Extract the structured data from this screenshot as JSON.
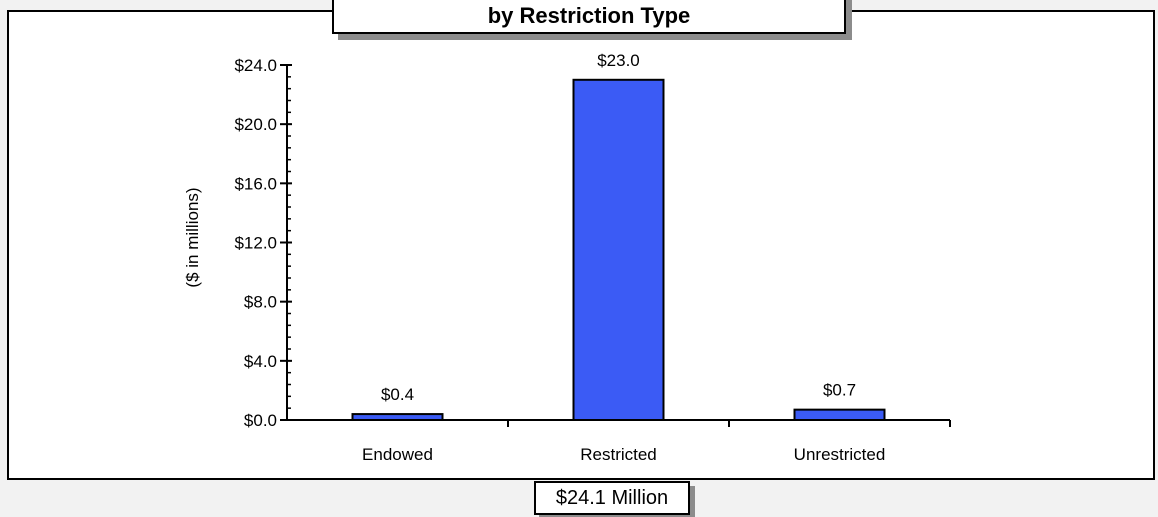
{
  "chart_data": {
    "type": "bar",
    "title": "by Restriction Type",
    "categories": [
      "Endowed",
      "Restricted",
      "Unrestricted"
    ],
    "values": [
      0.4,
      23.0,
      0.7
    ],
    "data_labels": [
      "$0.4",
      "$23.0",
      "$0.7"
    ],
    "ylabel": "($ in millions)",
    "ylim": [
      0,
      24
    ],
    "yticks": [
      0,
      4,
      8,
      12,
      16,
      20,
      24
    ],
    "ytick_labels": [
      "$0.0",
      "$4.0",
      "$8.0",
      "$12.0",
      "$16.0",
      "$20.0",
      "$24.0"
    ],
    "y_minor_step": 0.8,
    "grid": false,
    "bar_color": "#3b5bf5",
    "total_label": "$24.1 Million"
  }
}
